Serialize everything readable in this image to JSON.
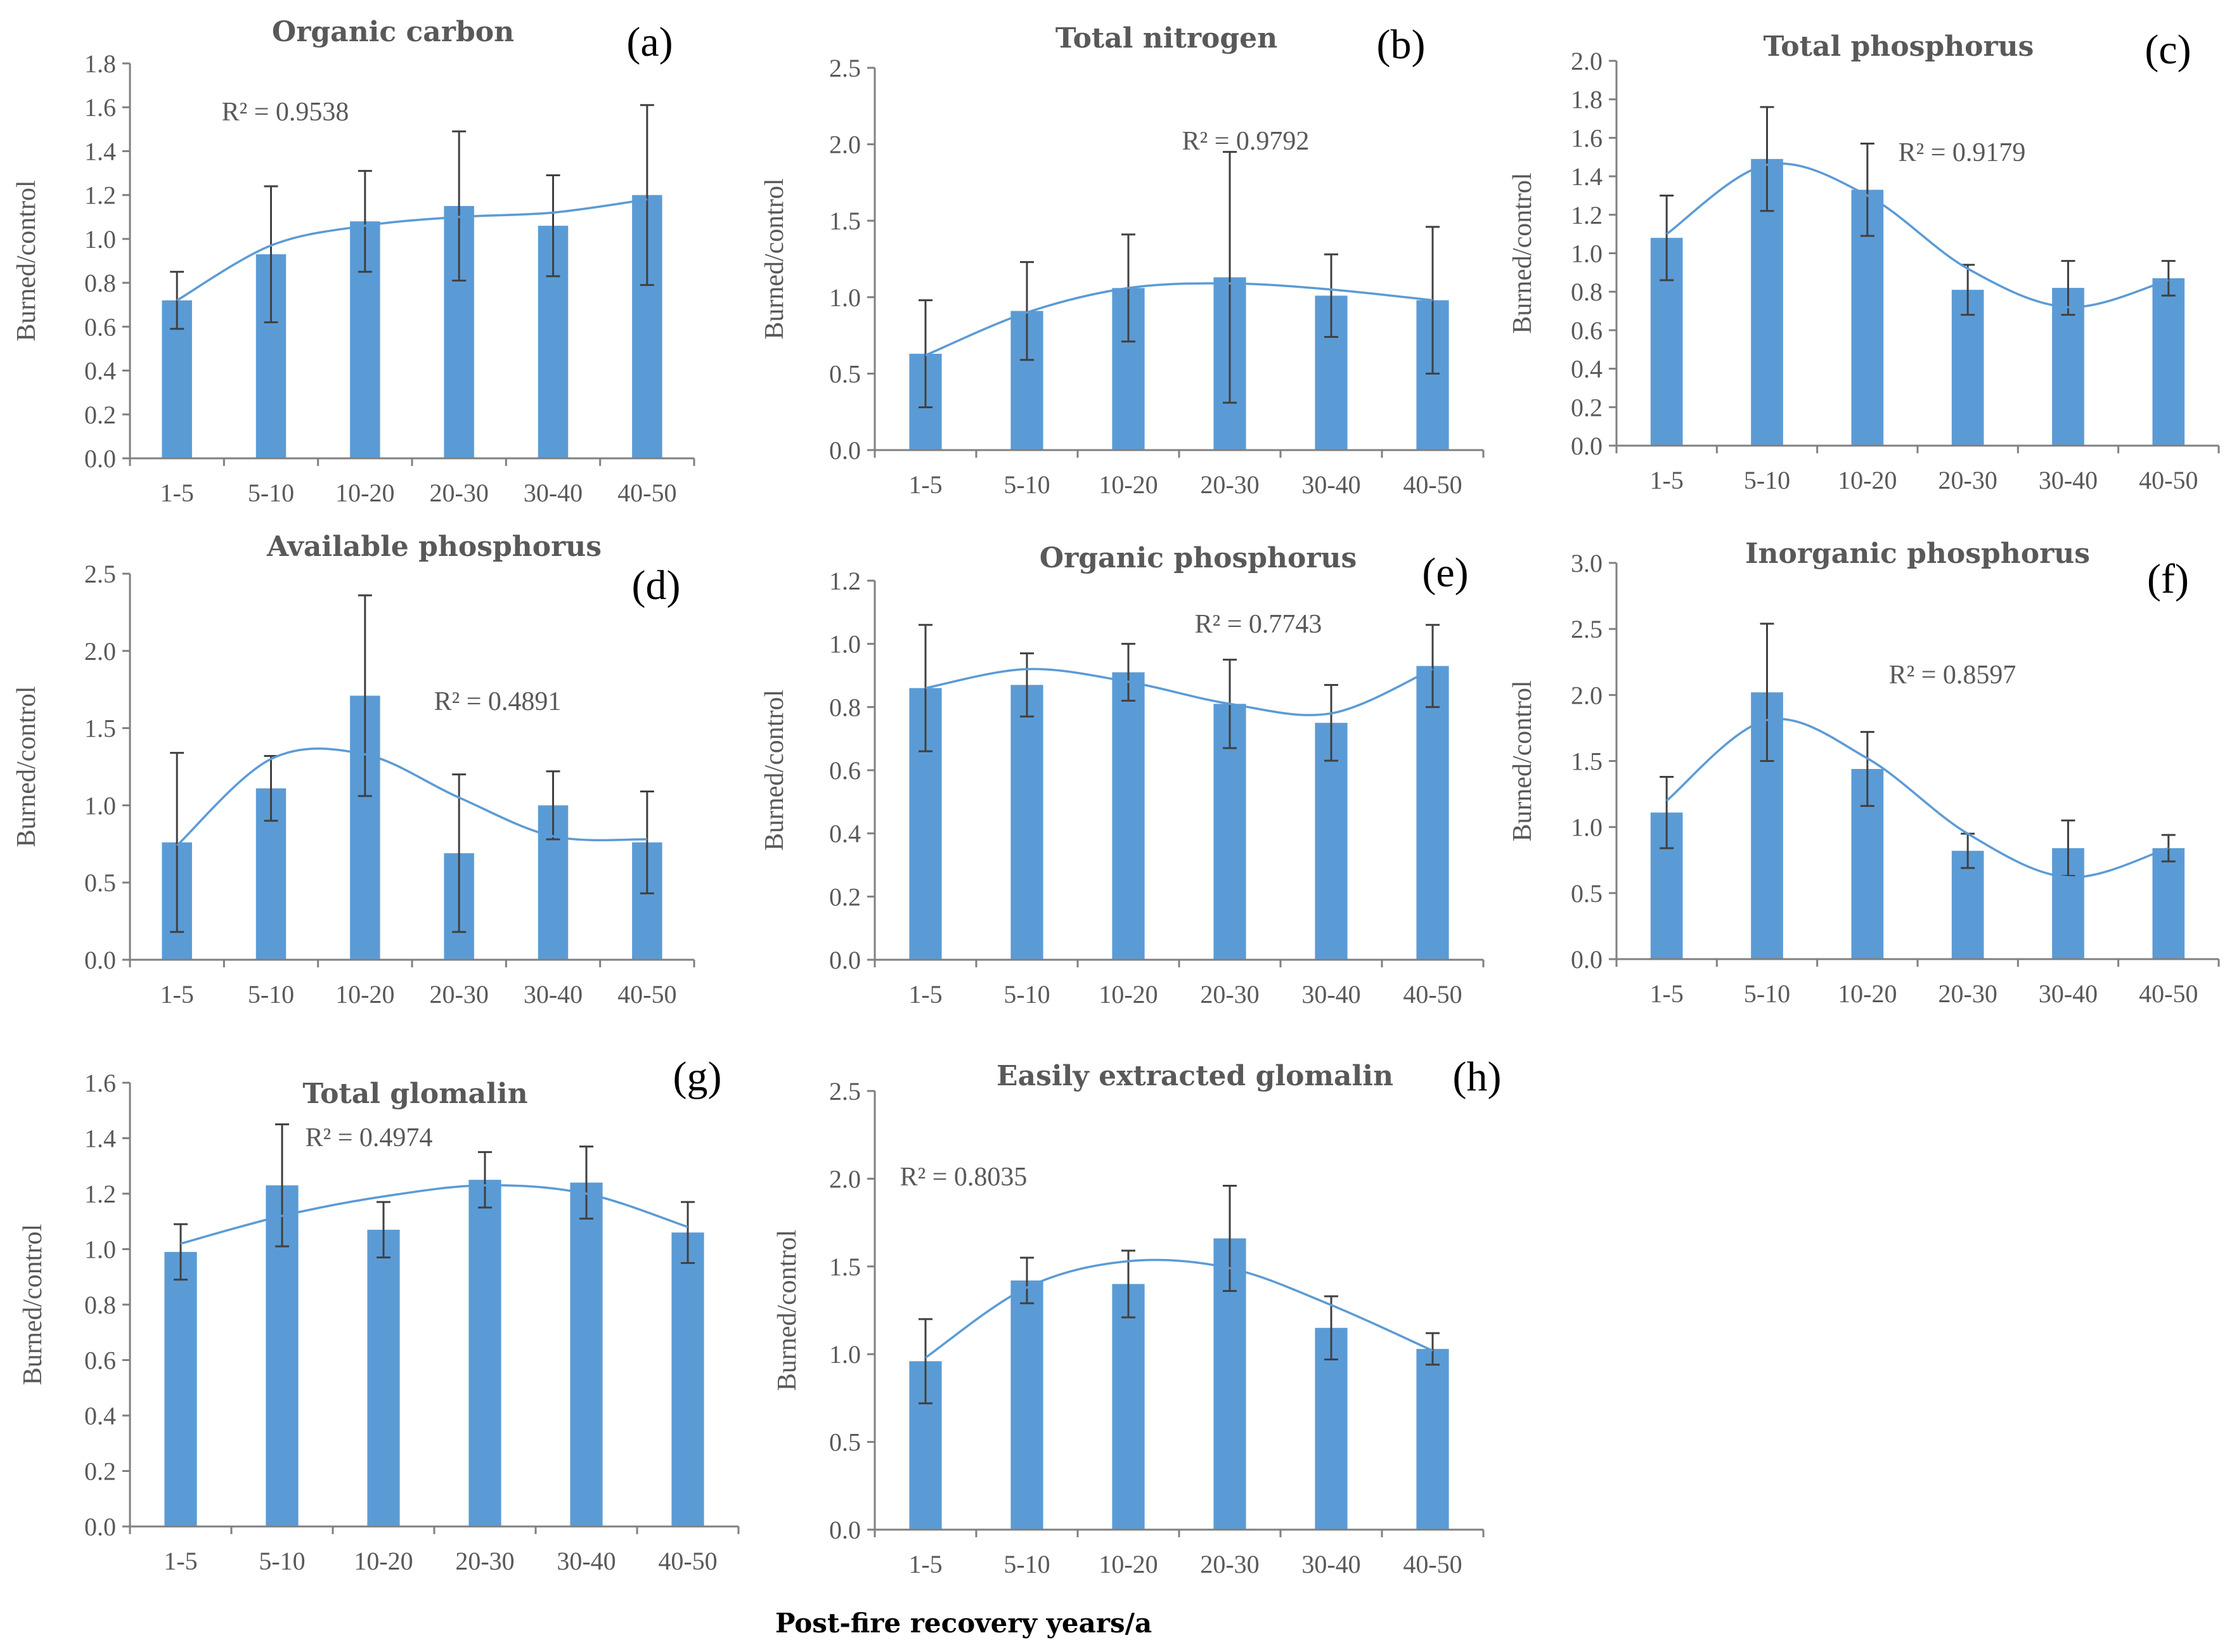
{
  "colors": {
    "bar": "#5B9BD5",
    "trend": "#5B9BD5",
    "error_bar": "#404040",
    "axis": "#808080",
    "text": "#595959"
  },
  "figure": {
    "xlabel": "Post-fire recovery years/a"
  },
  "chart_data": [
    {
      "id": "a",
      "type": "bar",
      "label": "(a)",
      "title": "Organic carbon",
      "ylabel": "Burned/control",
      "categories": [
        "1-5",
        "5-10",
        "10-20",
        "20-30",
        "30-40",
        "40-50"
      ],
      "values": [
        0.72,
        0.93,
        1.08,
        1.15,
        1.06,
        1.2
      ],
      "errors": [
        0.13,
        0.31,
        0.23,
        0.34,
        0.23,
        0.41
      ],
      "trend_values": [
        0.72,
        0.97,
        1.06,
        1.1,
        1.12,
        1.18
      ],
      "r2": "R² = 0.9538",
      "ylim": [
        0,
        1.8
      ],
      "yticks": [
        "0.0",
        "0.2",
        "0.4",
        "0.6",
        "0.8",
        "1.0",
        "1.2",
        "1.4",
        "1.6",
        "1.8"
      ]
    },
    {
      "id": "b",
      "type": "bar",
      "label": "(b)",
      "title": "Total  nitrogen",
      "ylabel": "Burned/control",
      "categories": [
        "1-5",
        "5-10",
        "10-20",
        "20-30",
        "30-40",
        "40-50"
      ],
      "values": [
        0.63,
        0.91,
        1.06,
        1.13,
        1.01,
        0.98
      ],
      "errors": [
        0.35,
        0.32,
        0.35,
        0.82,
        0.27,
        0.48
      ],
      "trend_values": [
        0.62,
        0.9,
        1.06,
        1.09,
        1.05,
        0.98
      ],
      "r2": "R² = 0.9792",
      "ylim": [
        0,
        2.5
      ],
      "yticks": [
        "0.0",
        "0.5",
        "1.0",
        "1.5",
        "2.0",
        "2.5"
      ]
    },
    {
      "id": "c",
      "type": "bar",
      "label": "(c)",
      "title": "Total  phosphorus",
      "ylabel": "Burned/control",
      "categories": [
        "1-5",
        "5-10",
        "10-20",
        "20-30",
        "30-40",
        "40-50"
      ],
      "values": [
        1.08,
        1.49,
        1.33,
        0.81,
        0.82,
        0.87
      ],
      "errors": [
        0.22,
        0.27,
        0.24,
        0.13,
        0.14,
        0.09
      ],
      "trend_values": [
        1.1,
        1.46,
        1.3,
        0.92,
        0.72,
        0.86
      ],
      "r2": "R² = 0.9179",
      "ylim": [
        0,
        2.0
      ],
      "yticks": [
        "0.0",
        "0.2",
        "0.4",
        "0.6",
        "0.8",
        "1.0",
        "1.2",
        "1.4",
        "1.6",
        "1.8",
        "2.0"
      ]
    },
    {
      "id": "d",
      "type": "bar",
      "label": "(d)",
      "title": "Available  phosphorus",
      "ylabel": "Burned/control",
      "categories": [
        "1-5",
        "5-10",
        "10-20",
        "20-30",
        "30-40",
        "40-50"
      ],
      "values": [
        0.76,
        1.11,
        1.71,
        0.69,
        1.0,
        0.76
      ],
      "errors": [
        0.58,
        0.21,
        0.65,
        0.51,
        0.22,
        0.33
      ],
      "trend_values": [
        0.74,
        1.3,
        1.33,
        1.05,
        0.8,
        0.78
      ],
      "r2": "R² = 0.4891",
      "ylim": [
        0,
        2.5
      ],
      "yticks": [
        "0.0",
        "0.5",
        "1.0",
        "1.5",
        "2.0",
        "2.5"
      ]
    },
    {
      "id": "e",
      "type": "bar",
      "label": "(e)",
      "title": "Organic  phosphorus",
      "ylabel": "Burned/control",
      "categories": [
        "1-5",
        "5-10",
        "10-20",
        "20-30",
        "30-40",
        "40-50"
      ],
      "values": [
        0.86,
        0.87,
        0.91,
        0.81,
        0.75,
        0.93
      ],
      "errors": [
        0.2,
        0.1,
        0.09,
        0.14,
        0.12,
        0.13
      ],
      "trend_values": [
        0.86,
        0.92,
        0.88,
        0.81,
        0.78,
        0.92
      ],
      "r2": "R² = 0.7743",
      "ylim": [
        0,
        1.2
      ],
      "yticks": [
        "0.0",
        "0.2",
        "0.4",
        "0.6",
        "0.8",
        "1.0",
        "1.2"
      ]
    },
    {
      "id": "f",
      "type": "bar",
      "label": "(f)",
      "title": "Inorganic  phosphorus",
      "ylabel": "Burned/control",
      "categories": [
        "1-5",
        "5-10",
        "10-20",
        "20-30",
        "30-40",
        "40-50"
      ],
      "values": [
        1.11,
        2.02,
        1.44,
        0.82,
        0.84,
        0.84
      ],
      "errors": [
        0.27,
        0.52,
        0.28,
        0.13,
        0.21,
        0.1
      ],
      "trend_values": [
        1.2,
        1.81,
        1.52,
        0.95,
        0.62,
        0.84
      ],
      "r2": "R² = 0.8597",
      "ylim": [
        0,
        3.0
      ],
      "yticks": [
        "0.0",
        "0.5",
        "1.0",
        "1.5",
        "2.0",
        "2.5",
        "3.0"
      ]
    },
    {
      "id": "g",
      "type": "bar",
      "label": "(g)",
      "title": "Total  glomalin",
      "ylabel": "Burned/control",
      "categories": [
        "1-5",
        "5-10",
        "10-20",
        "20-30",
        "30-40",
        "40-50"
      ],
      "values": [
        0.99,
        1.23,
        1.07,
        1.25,
        1.24,
        1.06
      ],
      "errors": [
        0.1,
        0.22,
        0.1,
        0.1,
        0.13,
        0.11
      ],
      "trend_values": [
        1.02,
        1.12,
        1.19,
        1.23,
        1.2,
        1.08
      ],
      "r2": "R² = 0.4974",
      "ylim": [
        0,
        1.6
      ],
      "yticks": [
        "0.0",
        "0.2",
        "0.4",
        "0.6",
        "0.8",
        "1.0",
        "1.2",
        "1.4",
        "1.6"
      ]
    },
    {
      "id": "h",
      "type": "bar",
      "label": "(h)",
      "title": "Easily  extracted  glomalin",
      "ylabel": "Burned/control",
      "categories": [
        "1-5",
        "5-10",
        "10-20",
        "20-30",
        "30-40",
        "40-50"
      ],
      "values": [
        0.96,
        1.42,
        1.4,
        1.66,
        1.15,
        1.03
      ],
      "errors": [
        0.24,
        0.13,
        0.19,
        0.3,
        0.18,
        0.09
      ],
      "trend_values": [
        0.98,
        1.38,
        1.53,
        1.49,
        1.28,
        1.02
      ],
      "r2": "R² = 0.8035",
      "ylim": [
        0,
        2.5
      ],
      "yticks": [
        "0.0",
        "0.5",
        "1.0",
        "1.5",
        "2.0",
        "2.5"
      ]
    }
  ]
}
